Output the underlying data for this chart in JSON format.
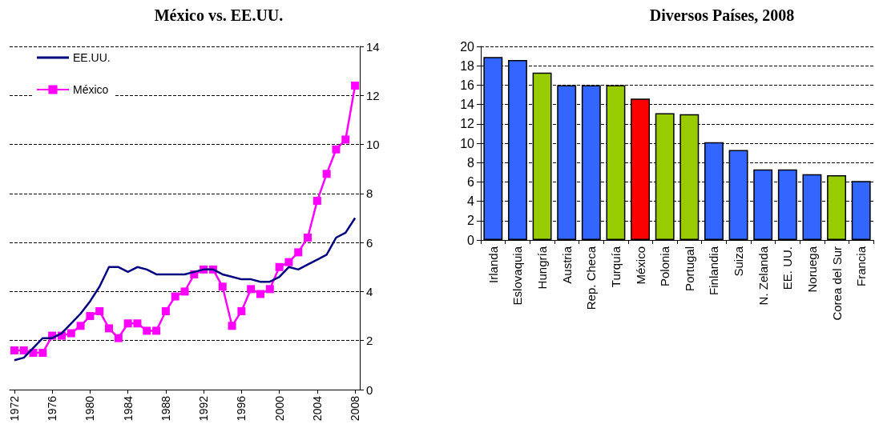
{
  "chart_data": [
    {
      "type": "line",
      "title": "México vs. EE.UU.",
      "x": [
        1972,
        1973,
        1974,
        1975,
        1976,
        1977,
        1978,
        1979,
        1980,
        1981,
        1982,
        1983,
        1984,
        1985,
        1986,
        1987,
        1988,
        1989,
        1990,
        1991,
        1992,
        1993,
        1994,
        1995,
        1996,
        1997,
        1998,
        1999,
        2000,
        2001,
        2002,
        2003,
        2004,
        2005,
        2006,
        2007,
        2008
      ],
      "series": [
        {
          "name": "EE.UU.",
          "color": "#000080",
          "marker": "none",
          "values": [
            1.2,
            1.3,
            1.7,
            2.1,
            2.1,
            2.3,
            2.7,
            3.1,
            3.6,
            4.2,
            5.0,
            5.0,
            4.8,
            5.0,
            4.9,
            4.7,
            4.7,
            4.7,
            4.7,
            4.8,
            4.9,
            4.9,
            4.7,
            4.6,
            4.5,
            4.5,
            4.4,
            4.4,
            4.6,
            5.0,
            4.9,
            5.1,
            5.3,
            5.5,
            6.2,
            6.4,
            7.0
          ]
        },
        {
          "name": "México",
          "color": "#ff00ff",
          "marker": "square",
          "values": [
            1.6,
            1.6,
            1.5,
            1.5,
            2.2,
            2.2,
            2.3,
            2.6,
            3.0,
            3.2,
            2.5,
            2.1,
            2.7,
            2.7,
            2.4,
            2.4,
            3.2,
            3.8,
            4.0,
            4.7,
            4.9,
            4.9,
            4.2,
            2.6,
            3.2,
            4.1,
            3.9,
            4.1,
            5.0,
            5.2,
            5.6,
            6.2,
            7.7,
            8.8,
            9.8,
            10.2,
            12.4
          ]
        }
      ],
      "xlim": [
        1971.5,
        2008.5
      ],
      "xticks": [
        1972,
        1976,
        1980,
        1984,
        1988,
        1992,
        1996,
        2000,
        2004,
        2008
      ],
      "ylim": [
        0,
        14
      ],
      "yticks": [
        0,
        2,
        4,
        6,
        8,
        10,
        12,
        14
      ],
      "grid": "y",
      "legend": "top left"
    },
    {
      "type": "bar",
      "title": "Diversos Países, 2008",
      "categories": [
        "Irlanda",
        "Eslovaquia",
        "Hungría",
        "Austria",
        "Rep. Checa",
        "Turquía",
        "México",
        "Polonia",
        "Portugal",
        "Finlandia",
        "Suiza",
        "N. Zelanda",
        "EE. UU.",
        "Noruega",
        "Corea del Sur",
        "Francia"
      ],
      "values": [
        18.9,
        18.6,
        17.3,
        16,
        16,
        16,
        14.6,
        13.1,
        13.0,
        10.1,
        9.3,
        7.3,
        7.3,
        6.8,
        6.7,
        6.1
      ],
      "colors": [
        "#3366ff",
        "#3366ff",
        "#99cc00",
        "#3366ff",
        "#3366ff",
        "#99cc00",
        "#ff0000",
        "#99cc00",
        "#99cc00",
        "#3366ff",
        "#3366ff",
        "#3366ff",
        "#3366ff",
        "#3366ff",
        "#99cc00",
        "#3366ff"
      ],
      "ylim": [
        0,
        20
      ],
      "yticks": [
        0,
        2,
        4,
        6,
        8,
        10,
        12,
        14,
        16,
        18,
        20
      ],
      "grid": "y",
      "legend": false
    }
  ]
}
